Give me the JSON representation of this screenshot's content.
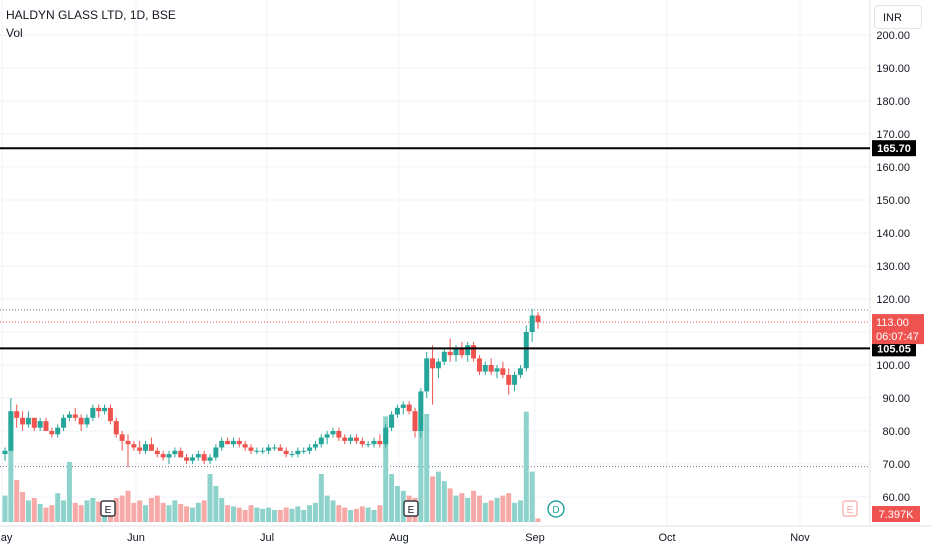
{
  "legend": {
    "title": "HALDYN GLASS LTD, 1D, BSE",
    "volume_label": "Vol"
  },
  "currency_button": "INR",
  "colors": {
    "up": "#26a69a",
    "down": "#ef5350",
    "up_vol": "#8ed3cb",
    "down_vol": "#f7a9a7",
    "grid": "#f0f3fa",
    "line": "#000000"
  },
  "chart_data": {
    "type": "candlestick",
    "title": "HALDYN GLASS LTD, 1D, BSE",
    "ylim": [
      56,
      208
    ],
    "y_ticks": [
      "200.00",
      "190.00",
      "180.00",
      "170.00",
      "160.00",
      "150.00",
      "140.00",
      "130.00",
      "120.00",
      "110.00",
      "100.00",
      "90.00",
      "80.00",
      "70.00",
      "60.00"
    ],
    "x_ticks": [
      "May",
      "Jun",
      "Jul",
      "Aug",
      "Sep",
      "Oct",
      "Nov"
    ],
    "horizontal_lines": [
      {
        "label": "165.70",
        "value": 165.7
      },
      {
        "label": "105.05",
        "value": 105.05
      }
    ],
    "last_price": {
      "value": 113.0,
      "label": "113.00",
      "countdown": "06:07:47"
    },
    "volume_label": "7.397K",
    "dotted_levels": [
      116.7,
      69.2
    ],
    "event_markers": [
      {
        "text": "E",
        "x": "Jun"
      },
      {
        "text": "E",
        "x": "Aug"
      },
      {
        "text": "D",
        "x": "Sep"
      },
      {
        "text": "E",
        "x": "Nov"
      }
    ],
    "candles": [
      [
        73,
        75,
        71,
        74,
        0.22
      ],
      [
        74,
        90,
        74,
        86,
        0.92
      ],
      [
        86,
        88,
        81,
        84,
        0.35
      ],
      [
        84,
        86,
        80,
        82,
        0.25
      ],
      [
        82,
        86,
        81,
        84,
        0.18
      ],
      [
        84,
        84,
        80,
        81,
        0.2
      ],
      [
        81,
        84,
        80,
        83,
        0.15
      ],
      [
        83,
        84,
        80,
        80,
        0.12
      ],
      [
        80,
        81,
        78,
        79,
        0.14
      ],
      [
        79,
        82,
        78,
        81,
        0.24
      ],
      [
        81,
        85,
        80,
        84,
        0.18
      ],
      [
        84,
        86,
        83,
        85,
        0.5
      ],
      [
        85,
        87,
        83,
        84,
        0.16
      ],
      [
        84,
        85,
        80,
        82,
        0.14
      ],
      [
        82,
        85,
        81,
        84,
        0.18
      ],
      [
        84,
        88,
        83,
        87,
        0.2
      ],
      [
        87,
        88,
        84,
        86,
        0.17
      ],
      [
        86,
        88,
        85,
        87,
        0.12
      ],
      [
        87,
        88,
        82,
        83,
        0.15
      ],
      [
        83,
        84,
        78,
        79,
        0.2
      ],
      [
        79,
        80,
        74,
        77,
        0.22
      ],
      [
        77,
        79,
        69,
        76,
        0.26
      ],
      [
        76,
        77,
        74,
        75,
        0.16
      ],
      [
        75,
        77,
        73,
        74,
        0.18
      ],
      [
        74,
        77,
        73,
        76,
        0.14
      ],
      [
        76,
        78,
        74,
        74,
        0.2
      ],
      [
        74,
        75,
        72,
        73,
        0.22
      ],
      [
        73,
        74,
        71,
        72,
        0.16
      ],
      [
        72,
        74,
        70,
        73,
        0.14
      ],
      [
        73,
        75,
        72,
        74,
        0.18
      ],
      [
        74,
        75,
        72,
        72,
        0.15
      ],
      [
        72,
        73,
        70,
        71,
        0.13
      ],
      [
        71,
        73,
        70,
        72,
        0.12
      ],
      [
        72,
        74,
        71,
        73,
        0.16
      ],
      [
        73,
        74,
        70,
        71,
        0.18
      ],
      [
        71,
        73,
        70,
        72,
        0.4
      ],
      [
        72,
        76,
        71,
        75,
        0.3
      ],
      [
        75,
        78,
        74,
        77,
        0.2
      ],
      [
        77,
        78,
        76,
        76,
        0.14
      ],
      [
        76,
        78,
        75,
        77,
        0.13
      ],
      [
        77,
        78,
        75,
        76,
        0.12
      ],
      [
        76,
        77,
        74,
        75,
        0.1
      ],
      [
        75,
        76,
        73,
        74,
        0.14
      ],
      [
        74,
        75,
        73,
        74,
        0.12
      ],
      [
        74,
        75,
        73,
        74,
        0.11
      ],
      [
        74,
        76,
        73,
        75,
        0.12
      ],
      [
        75,
        76,
        74,
        75,
        0.1
      ],
      [
        75,
        76,
        74,
        74,
        0.1
      ],
      [
        74,
        75,
        72,
        73,
        0.12
      ],
      [
        73,
        74,
        72,
        73,
        0.11
      ],
      [
        73,
        75,
        72,
        74,
        0.13
      ],
      [
        74,
        75,
        73,
        74,
        0.1
      ],
      [
        74,
        76,
        73,
        75,
        0.14
      ],
      [
        75,
        77,
        74,
        76,
        0.16
      ],
      [
        76,
        79,
        75,
        78,
        0.4
      ],
      [
        78,
        80,
        76,
        79,
        0.22
      ],
      [
        79,
        81,
        78,
        80,
        0.18
      ],
      [
        80,
        81,
        77,
        78,
        0.14
      ],
      [
        78,
        79,
        76,
        77,
        0.12
      ],
      [
        77,
        79,
        76,
        78,
        0.1
      ],
      [
        78,
        79,
        76,
        77,
        0.11
      ],
      [
        77,
        78,
        75,
        76,
        0.13
      ],
      [
        76,
        77,
        75,
        76,
        0.12
      ],
      [
        76,
        78,
        75,
        77,
        0.1
      ],
      [
        77,
        79,
        75,
        76,
        0.14
      ],
      [
        76,
        82,
        75,
        81,
        0.88
      ],
      [
        81,
        86,
        80,
        85,
        0.4
      ],
      [
        85,
        88,
        84,
        87,
        0.3
      ],
      [
        87,
        89,
        85,
        88,
        0.26
      ],
      [
        88,
        89,
        85,
        86,
        0.22
      ],
      [
        86,
        87,
        78,
        80,
        0.2
      ],
      [
        80,
        93,
        78,
        92,
        0.88
      ],
      [
        92,
        104,
        90,
        102,
        0.9
      ],
      [
        102,
        106,
        88,
        99,
        0.38
      ],
      [
        99,
        102,
        96,
        101,
        0.42
      ],
      [
        101,
        105,
        100,
        104,
        0.34
      ],
      [
        104,
        108,
        101,
        103,
        0.28
      ],
      [
        103,
        106,
        101,
        105,
        0.22
      ],
      [
        105,
        107,
        102,
        103,
        0.24
      ],
      [
        103,
        107,
        101,
        106,
        0.2
      ],
      [
        106,
        107,
        101,
        102,
        0.26
      ],
      [
        102,
        103,
        97,
        98,
        0.22
      ],
      [
        98,
        101,
        97,
        100,
        0.16
      ],
      [
        100,
        102,
        97,
        98,
        0.18
      ],
      [
        98,
        100,
        96,
        99,
        0.2
      ],
      [
        99,
        101,
        96,
        97,
        0.22
      ],
      [
        97,
        99,
        91,
        94,
        0.24
      ],
      [
        94,
        98,
        92,
        97,
        0.16
      ],
      [
        97,
        100,
        96,
        99,
        0.18
      ],
      [
        99,
        112,
        98,
        110,
        0.92
      ],
      [
        110,
        117,
        107,
        115,
        0.42
      ],
      [
        115,
        116,
        111,
        113,
        0.03
      ]
    ]
  }
}
